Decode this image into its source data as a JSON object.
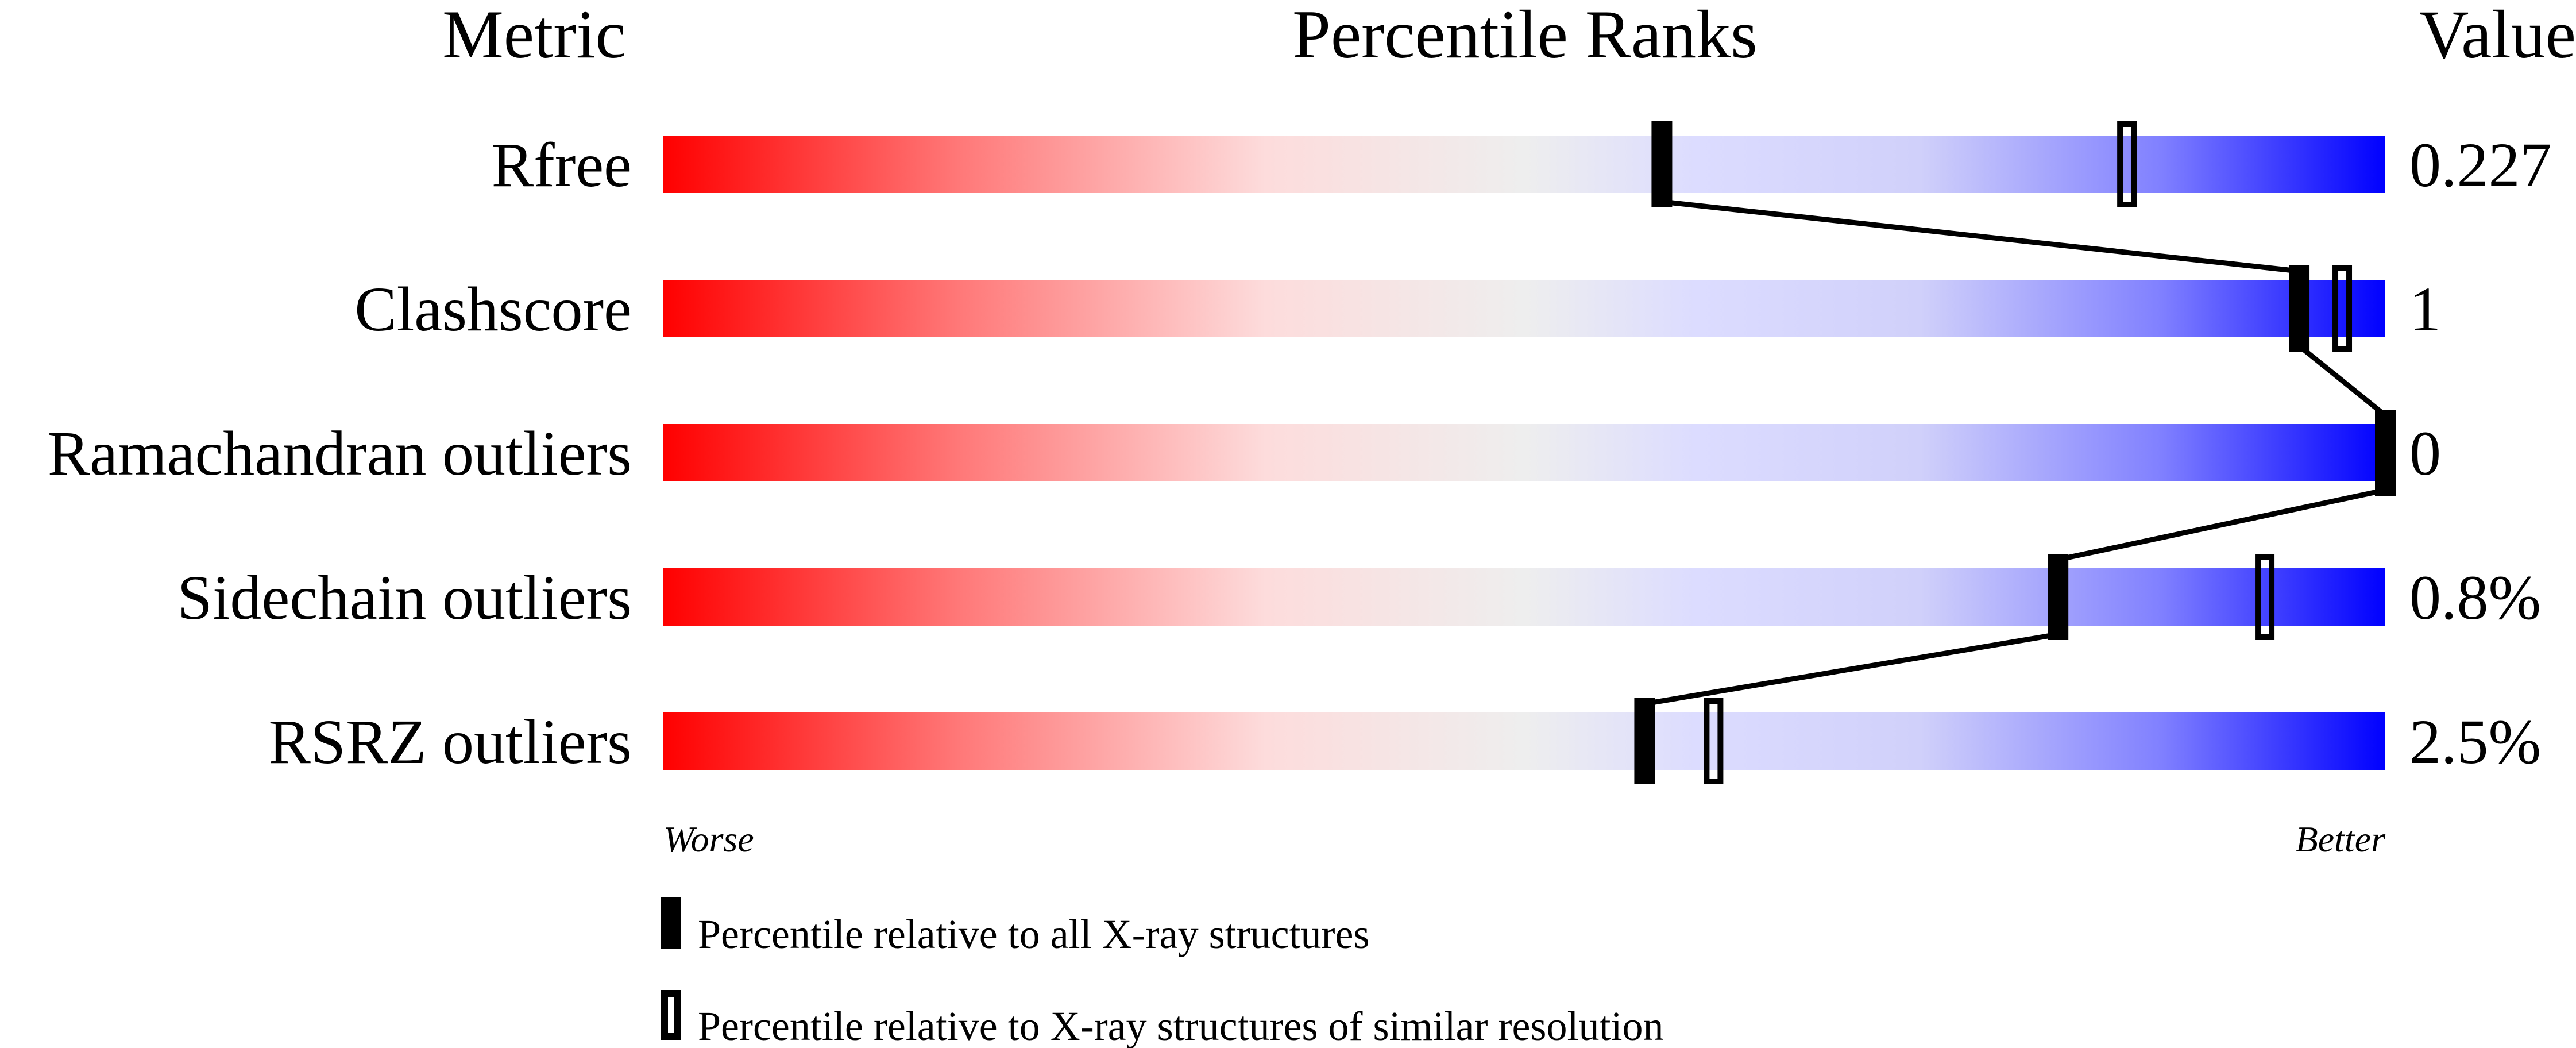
{
  "chart_data": {
    "type": "bar",
    "headers": {
      "metric": "Metric",
      "percentile": "Percentile Ranks",
      "value": "Value"
    },
    "xlim": [
      0,
      100
    ],
    "gradient_colors": [
      "#ff0000",
      "#ff7777",
      "#fddcdc",
      "#eeeeee",
      "#dcdcff",
      "#d0d0fa",
      "#8080ff",
      "#0000ff"
    ],
    "rows": [
      {
        "metric": "Rfree",
        "value": "0.227",
        "percentile_all": 58,
        "percentile_similar": 85
      },
      {
        "metric": "Clashscore",
        "value": "1",
        "percentile_all": 95,
        "percentile_similar": 97.5
      },
      {
        "metric": "Ramachandran outliers",
        "value": "0",
        "percentile_all": 100,
        "percentile_similar": null
      },
      {
        "metric": "Sidechain outliers",
        "value": "0.8%",
        "percentile_all": 81,
        "percentile_similar": 93
      },
      {
        "metric": "RSRZ outliers",
        "value": "2.5%",
        "percentile_all": 57,
        "percentile_similar": 61
      }
    ],
    "axis_labels": {
      "left": "Worse",
      "right": "Better"
    },
    "legend": {
      "all": "Percentile relative to all X-ray structures",
      "similar": "Percentile relative to X-ray structures of similar resolution"
    }
  }
}
